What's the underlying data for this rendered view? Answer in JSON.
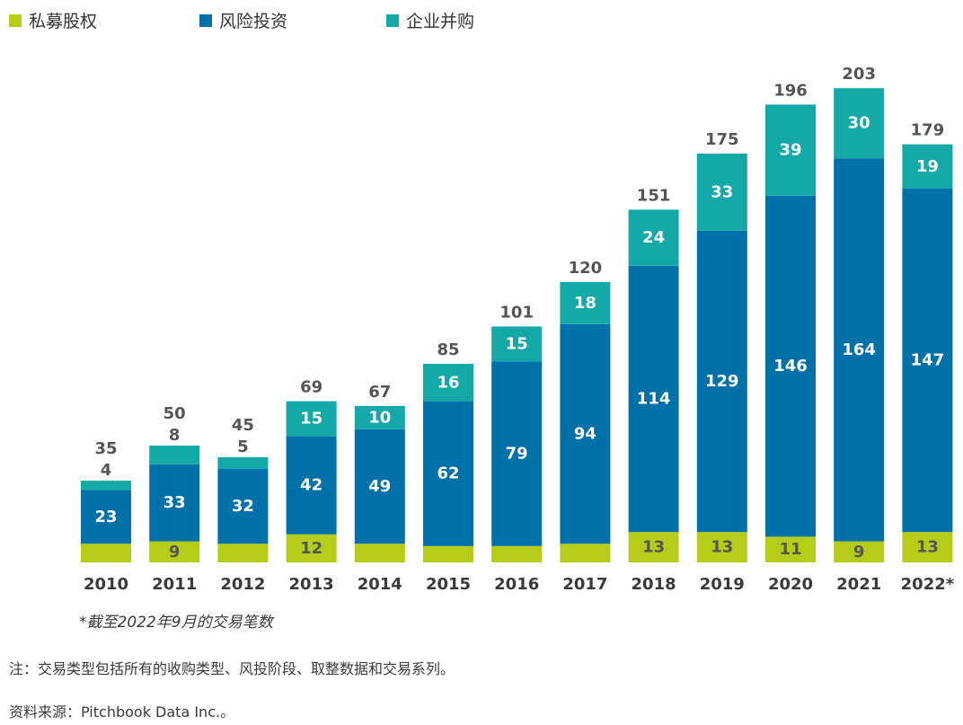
{
  "chart_data": {
    "type": "bar",
    "stacked": true,
    "categories": [
      "2010",
      "2011",
      "2012",
      "2013",
      "2014",
      "2015",
      "2016",
      "2017",
      "2018",
      "2019",
      "2020",
      "2021",
      "2022*"
    ],
    "series": [
      {
        "name": "私募股权",
        "color": "#b5cc18",
        "values": [
          8,
          9,
          8,
          12,
          8,
          7,
          7,
          8,
          13,
          13,
          11,
          9,
          13
        ]
      },
      {
        "name": "风险投资",
        "color": "#0070a8",
        "values": [
          23,
          33,
          32,
          42,
          49,
          62,
          79,
          94,
          114,
          129,
          146,
          164,
          147
        ]
      },
      {
        "name": "企业并购",
        "color": "#14a8a8",
        "values": [
          4,
          8,
          5,
          15,
          10,
          16,
          15,
          18,
          24,
          33,
          39,
          30,
          19
        ]
      }
    ],
    "totals": [
      35,
      50,
      45,
      69,
      67,
      85,
      101,
      120,
      151,
      175,
      196,
      203,
      179
    ],
    "legend_position": "top-left",
    "grid": false
  },
  "footnote": "*截至2022年9月的交易笔数",
  "note": "注：交易类型包括所有的收购类型、风投阶段、取整数据和交易系列。",
  "source": "资料来源：Pitchbook Data Inc.。"
}
